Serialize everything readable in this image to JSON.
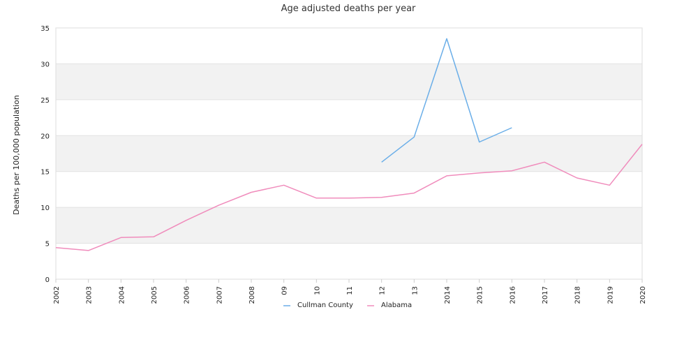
{
  "chart_data": {
    "type": "line",
    "title": "Age adjusted deaths per year",
    "xlabel": "",
    "ylabel": "Deaths per 100,000 population",
    "categories": [
      "2002",
      "2003",
      "2004",
      "2005",
      "2006",
      "2007",
      "2008",
      "09",
      "10",
      "11",
      "12",
      "13",
      "2014",
      "2015",
      "2016",
      "2017",
      "2018",
      "2019",
      "2020"
    ],
    "ylim": [
      0,
      35
    ],
    "yticks": [
      0,
      5,
      10,
      15,
      20,
      25,
      30,
      35
    ],
    "grid": "alternating horizontal bands",
    "legend_position": "bottom-center",
    "series": [
      {
        "name": "Cullman County",
        "color": "#6aaee8",
        "values": [
          null,
          null,
          null,
          null,
          null,
          null,
          null,
          null,
          null,
          null,
          16.3,
          19.8,
          33.5,
          19.1,
          21.1,
          null,
          null,
          null,
          null
        ]
      },
      {
        "name": "Alabama",
        "color": "#f08cbc",
        "values": [
          4.4,
          4.0,
          5.8,
          5.9,
          8.2,
          10.3,
          12.1,
          13.1,
          11.3,
          11.3,
          11.4,
          12.0,
          14.4,
          14.8,
          15.1,
          16.3,
          14.1,
          13.1,
          18.8
        ]
      }
    ]
  }
}
